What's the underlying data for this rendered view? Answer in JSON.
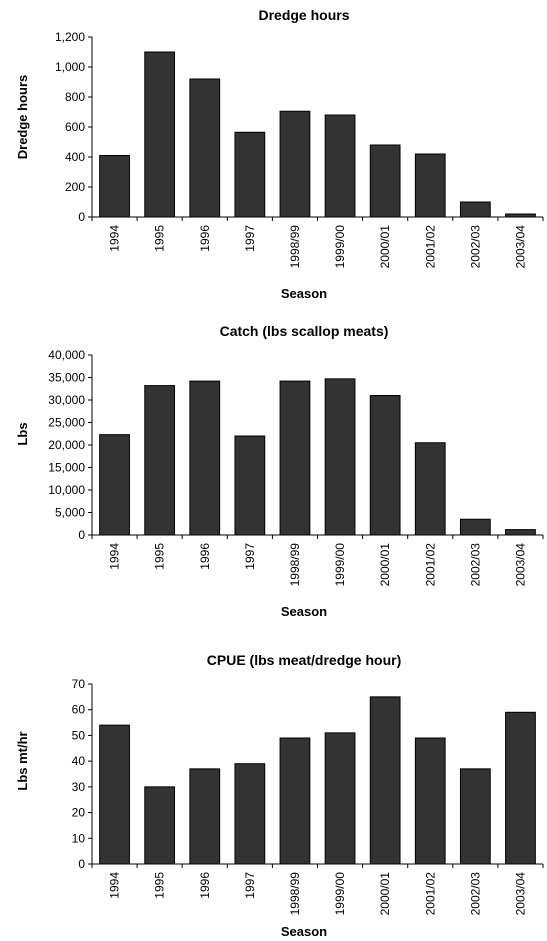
{
  "chart_data": [
    {
      "type": "bar",
      "title": "Dredge hours",
      "xlabel": "Season",
      "ylabel": "Dredge hours",
      "categories": [
        "1994",
        "1995",
        "1996",
        "1997",
        "1998/99",
        "1999/00",
        "2000/01",
        "2001/02",
        "2002/03",
        "2003/04"
      ],
      "values": [
        410,
        1100,
        920,
        565,
        705,
        680,
        480,
        420,
        100,
        20
      ],
      "yticks": [
        "0",
        "200",
        "400",
        "600",
        "800",
        "1,000",
        "1,200"
      ],
      "ylim": [
        0,
        1200
      ],
      "grid": false,
      "bar_color": "#333333"
    },
    {
      "type": "bar",
      "title": "Catch (lbs scallop meats)",
      "xlabel": "Season",
      "ylabel": "Lbs",
      "categories": [
        "1994",
        "1995",
        "1996",
        "1997",
        "1998/99",
        "1999/00",
        "2000/01",
        "2001/02",
        "2002/03",
        "2003/04"
      ],
      "values": [
        22300,
        33200,
        34200,
        22000,
        34200,
        34700,
        31000,
        20500,
        3500,
        1200
      ],
      "yticks": [
        "0",
        "5,000",
        "10,000",
        "15,000",
        "20,000",
        "25,000",
        "30,000",
        "35,000",
        "40,000"
      ],
      "ylim": [
        0,
        40000
      ],
      "grid": false,
      "bar_color": "#333333"
    },
    {
      "type": "bar",
      "title": "CPUE (lbs meat/dredge hour)",
      "xlabel": "Season",
      "ylabel": "Lbs mt/hr",
      "categories": [
        "1994",
        "1995",
        "1996",
        "1997",
        "1998/99",
        "1999/00",
        "2000/01",
        "2001/02",
        "2002/03",
        "2003/04"
      ],
      "values": [
        54,
        30,
        37,
        39,
        49,
        51,
        65,
        49,
        37,
        59
      ],
      "yticks": [
        "0",
        "10",
        "20",
        "30",
        "40",
        "50",
        "60",
        "70"
      ],
      "ylim": [
        0,
        70
      ],
      "grid": false,
      "bar_color": "#333333"
    }
  ]
}
